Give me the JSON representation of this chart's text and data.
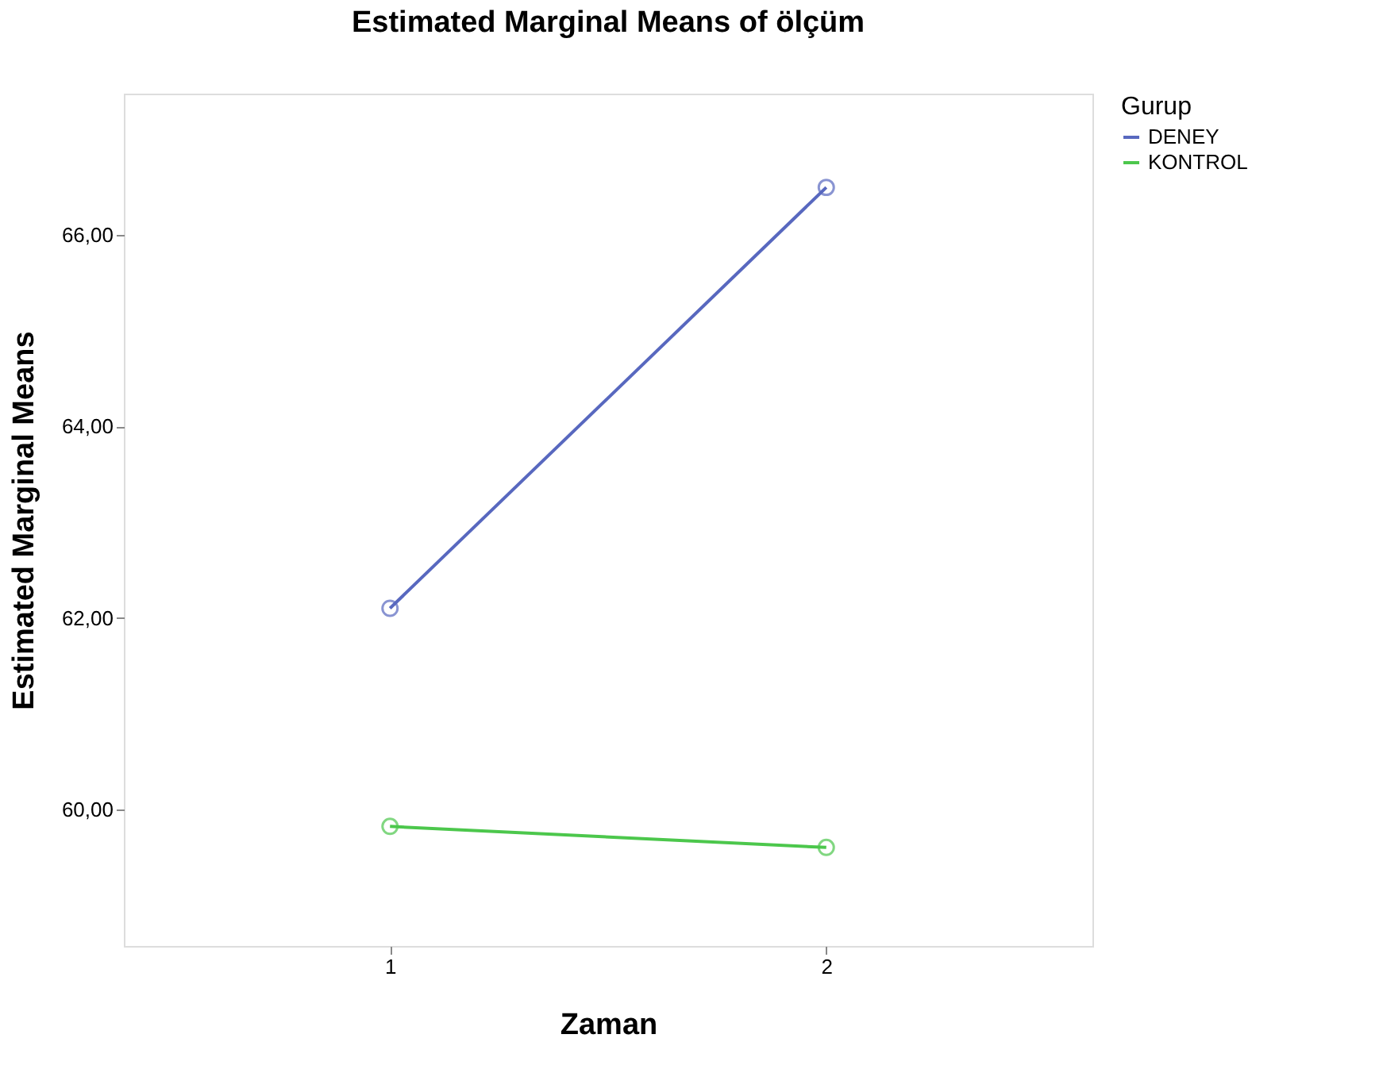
{
  "chart_data": {
    "type": "line",
    "title": "Estimated Marginal Means of ölçüm",
    "xlabel": "Zaman",
    "ylabel": "Estimated Marginal Means",
    "legend_title": "Gurup",
    "categories": [
      "1",
      "2"
    ],
    "series": [
      {
        "name": "DENEY",
        "color": "#5868bf",
        "values": [
          62.1,
          66.5
        ]
      },
      {
        "name": "KONTROL",
        "color": "#4cc74c",
        "values": [
          59.82,
          59.6
        ]
      }
    ],
    "ylim": [
      58.57,
      67.48
    ],
    "yticks": [
      {
        "value": 60,
        "label": "60,00"
      },
      {
        "value": 62,
        "label": "62,00"
      },
      {
        "value": 64,
        "label": "64,00"
      },
      {
        "value": 66,
        "label": "66,00"
      }
    ],
    "grid": false,
    "legend": "top right",
    "marker": "circle",
    "line_style": "solid"
  }
}
